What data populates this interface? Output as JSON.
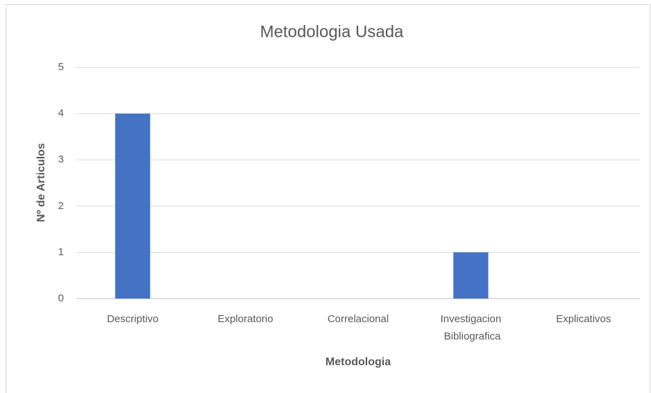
{
  "chart_data": {
    "type": "bar",
    "title": "Metodologia Usada",
    "x_label": "Metodologia",
    "y_label": "Nº de Articulos",
    "categories": [
      "Descriptivo",
      "Exploratorio",
      "Correlacional",
      "Investigacion Bibliografica",
      "Explicativos"
    ],
    "values": [
      4,
      0,
      0,
      1,
      0
    ],
    "color": "#4472c4",
    "ylim": [
      0,
      5
    ],
    "yticks": [
      0,
      1,
      2,
      3,
      4,
      5
    ],
    "grid": true
  }
}
